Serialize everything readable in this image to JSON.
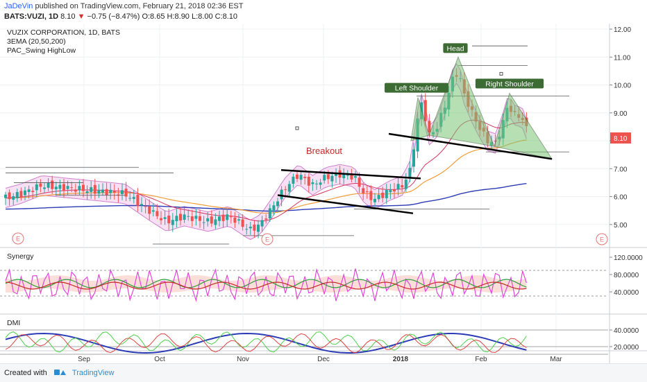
{
  "header": {
    "author": "JaDeVin",
    "published_text": "published on TradingView.com, February 21, 2018 02:36 EST",
    "symbol": "BATS:VUZI, 1D",
    "last": "8.10",
    "change": "−0.75 (−8.47%)",
    "ohlc": "O:8.65 H:8.90 L:8.00 C:8.10"
  },
  "legend": {
    "name": "VUZIX CORPORATION, 1D, BATS",
    "ema": "3EMA (20,50,200)",
    "pac": "PAC_Swing HighLow"
  },
  "annotations": {
    "breakout": "Breakout",
    "left_shoulder": "Left Shoulder",
    "head": "Head",
    "right_shoulder": "Right Shoulder",
    "earnings": "E"
  },
  "panes": {
    "synergy": "Synergy",
    "dmi": "DMI"
  },
  "price_badge": "8.10",
  "footer": {
    "created_with": "Created with",
    "brand": "TradingView"
  },
  "colors": {
    "up": "#26a69a",
    "down": "#ef5350",
    "pattern_fill": "#7cc576",
    "label_bg": "#3d6b34",
    "breakout_text": "#c62828",
    "badge": "#ef5350"
  },
  "chart_data": {
    "type": "candlestick",
    "title": "VUZIX CORPORATION, 1D, BATS",
    "x_ticks": [
      "Sep",
      "Oct",
      "Nov",
      "Dec",
      "2018",
      "Feb",
      "Mar"
    ],
    "price_axis": {
      "ticks": [
        "12.00",
        "11.00",
        "10.00",
        "9.00",
        "8.00",
        "7.00",
        "6.00",
        "5.00"
      ],
      "ylim": [
        4.2,
        12.1
      ]
    },
    "synergy_axis": {
      "ticks": [
        "120.0000",
        "80.0000",
        "40.0000"
      ]
    },
    "dmi_axis": {
      "ticks": [
        "40.0000",
        "20.0000"
      ]
    },
    "last_close": 8.1,
    "key_points": [
      {
        "label": "Left Shoulder",
        "value": 9.6
      },
      {
        "label": "Head",
        "value": 11.0
      },
      {
        "label": "Right Shoulder",
        "value": 9.7
      }
    ]
  }
}
